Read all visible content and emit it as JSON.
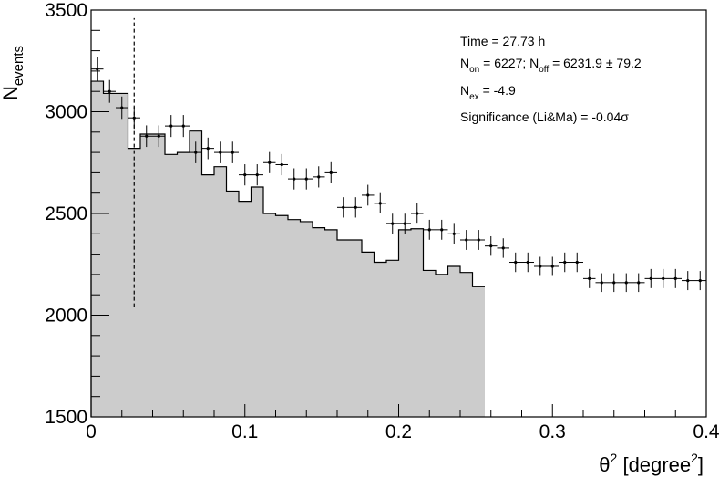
{
  "chart_data": {
    "type": "histogram",
    "xlabel_base": "θ",
    "xlabel_sup": "2",
    "xlabel_unit_open": " [degree",
    "xlabel_unit_sup": "2",
    "xlabel_unit_close": "]",
    "ylabel_base": "N",
    "ylabel_sub": "events",
    "xlim": [
      0,
      0.4
    ],
    "ylim": [
      1500,
      3500
    ],
    "x_ticks": [
      0,
      0.1,
      0.2,
      0.3,
      0.4
    ],
    "x_tick_labels": [
      "0",
      "0.1",
      "0.2",
      "0.3",
      "0.4"
    ],
    "y_ticks": [
      1500,
      2000,
      2500,
      3000,
      3500
    ],
    "y_tick_labels": [
      "1500",
      "2000",
      "2500",
      "3000",
      "3500"
    ],
    "cut_line_x": 0.028,
    "cut_line_y": [
      2040,
      3460
    ],
    "background_histogram": {
      "bin_width": 0.008,
      "bin_edges_start": 0,
      "values": [
        3150,
        3090,
        3090,
        2820,
        2890,
        2890,
        2790,
        2800,
        2905,
        2690,
        2730,
        2610,
        2560,
        2630,
        2500,
        2490,
        2470,
        2460,
        2430,
        2420,
        2370,
        2370,
        2310,
        2260,
        2270,
        2420,
        2425,
        2220,
        2200,
        2240,
        2210,
        2140
      ]
    },
    "on_points": {
      "bin_width": 0.008,
      "x": [
        0.004,
        0.012,
        0.02,
        0.028,
        0.036,
        0.044,
        0.052,
        0.06,
        0.068,
        0.076,
        0.084,
        0.092,
        0.1,
        0.108,
        0.116,
        0.124,
        0.132,
        0.14,
        0.148,
        0.156,
        0.164,
        0.172,
        0.18,
        0.188,
        0.196,
        0.204,
        0.212,
        0.22,
        0.228,
        0.236,
        0.244,
        0.252,
        0.26,
        0.268,
        0.276,
        0.284,
        0.292,
        0.3,
        0.308,
        0.316,
        0.324,
        0.332,
        0.34,
        0.348,
        0.356,
        0.364,
        0.372,
        0.38,
        0.388,
        0.396
      ],
      "y": [
        3210,
        3100,
        3020,
        2970,
        2880,
        2880,
        2930,
        2930,
        2800,
        2820,
        2800,
        2800,
        2690,
        2690,
        2750,
        2740,
        2670,
        2670,
        2680,
        2700,
        2530,
        2530,
        2590,
        2550,
        2450,
        2450,
        2500,
        2420,
        2420,
        2400,
        2370,
        2370,
        2340,
        2330,
        2260,
        2260,
        2240,
        2240,
        2260,
        2260,
        2180,
        2160,
        2160,
        2160,
        2160,
        2180,
        2180,
        2180,
        2170,
        2170
      ],
      "err": [
        58,
        56,
        55,
        54,
        53,
        53,
        54,
        54,
        53,
        53,
        53,
        53,
        52,
        52,
        52,
        52,
        52,
        52,
        52,
        52,
        50,
        50,
        51,
        50,
        49,
        49,
        50,
        49,
        49,
        49,
        49,
        49,
        48,
        48,
        48,
        48,
        47,
        47,
        48,
        48,
        47,
        46,
        46,
        46,
        46,
        47,
        47,
        47,
        47,
        47
      ]
    },
    "stats": {
      "line1": "Time = 27.73 h",
      "line2_a": "N",
      "line2_a_sub": "on",
      "line2_b": " = 6227; N",
      "line2_b_sub": "off",
      "line2_c": " = 6231.9 ± 79.2",
      "line3_a": "N",
      "line3_a_sub": "ex",
      "line3_b": " = -4.9",
      "line4": "Significance (Li&Ma) = -0.04σ"
    },
    "colors": {
      "fill": "#cccccc",
      "line": "#000000"
    }
  }
}
